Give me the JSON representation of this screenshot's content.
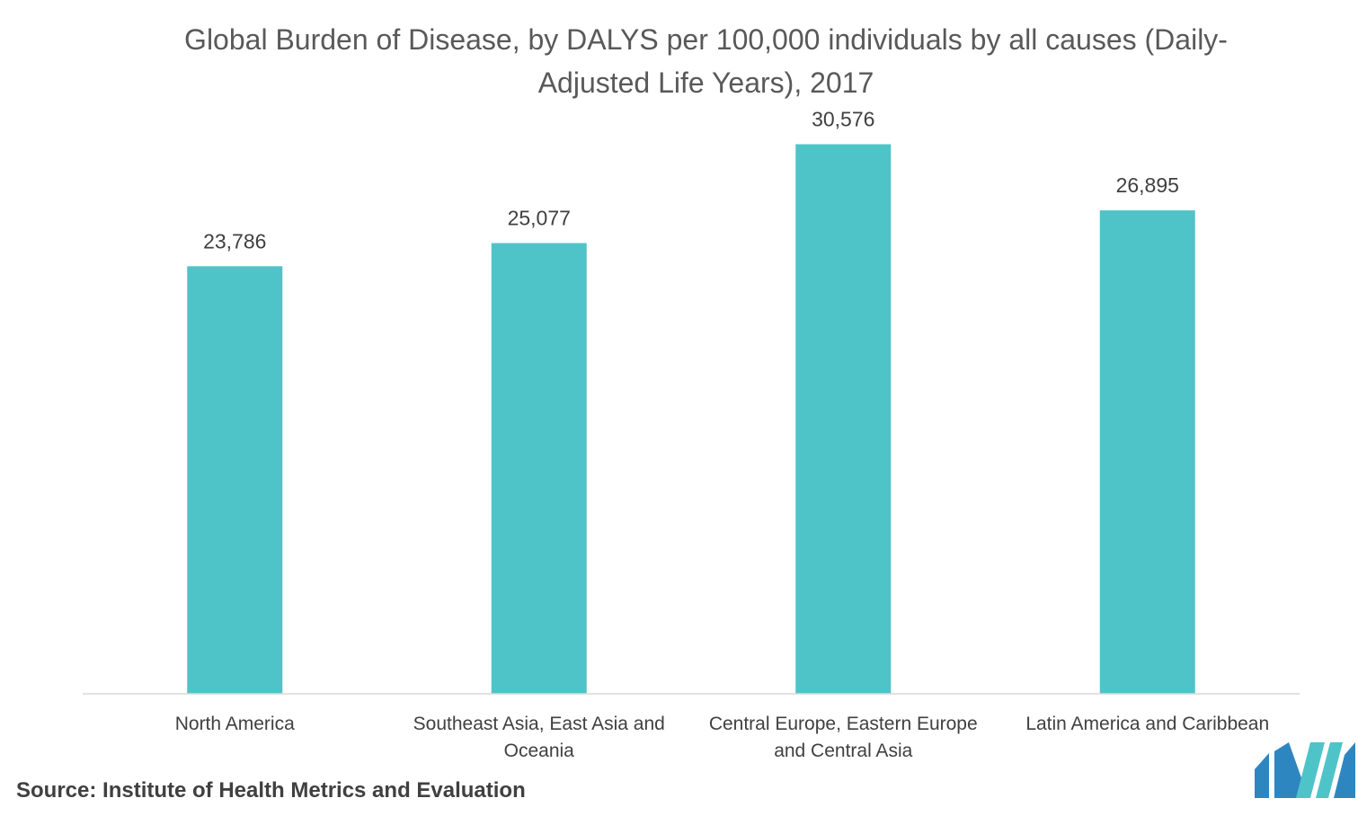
{
  "chart_data": {
    "type": "bar",
    "title": "Global Burden of Disease, by DALYS per 100,000 individuals by all causes (Daily-Adjusted Life Years), 2017",
    "categories": [
      [
        "North America"
      ],
      [
        "Southeast Asia, East Asia and",
        "Oceania"
      ],
      [
        "Central Europe, Eastern Europe",
        "and Central Asia"
      ],
      [
        "Latin America and Caribbean"
      ]
    ],
    "values": [
      23786,
      25077,
      30576,
      26895
    ],
    "value_labels": [
      "23,786",
      "25,077",
      "30,576",
      "26,895"
    ],
    "xlabel": "",
    "ylabel": "",
    "ylim": [
      0,
      35000
    ],
    "grid": false,
    "legend": "none",
    "colors": {
      "bar": "#4FC4C8",
      "axis": "#D9D9D9",
      "text": "#404040",
      "title": "#595959"
    }
  },
  "source": "Source: Institute of Health Metrics and Evaluation",
  "logo": {
    "icon": "brand-logo-icon",
    "colors": [
      "#2E86C1",
      "#4FC4C8"
    ]
  }
}
